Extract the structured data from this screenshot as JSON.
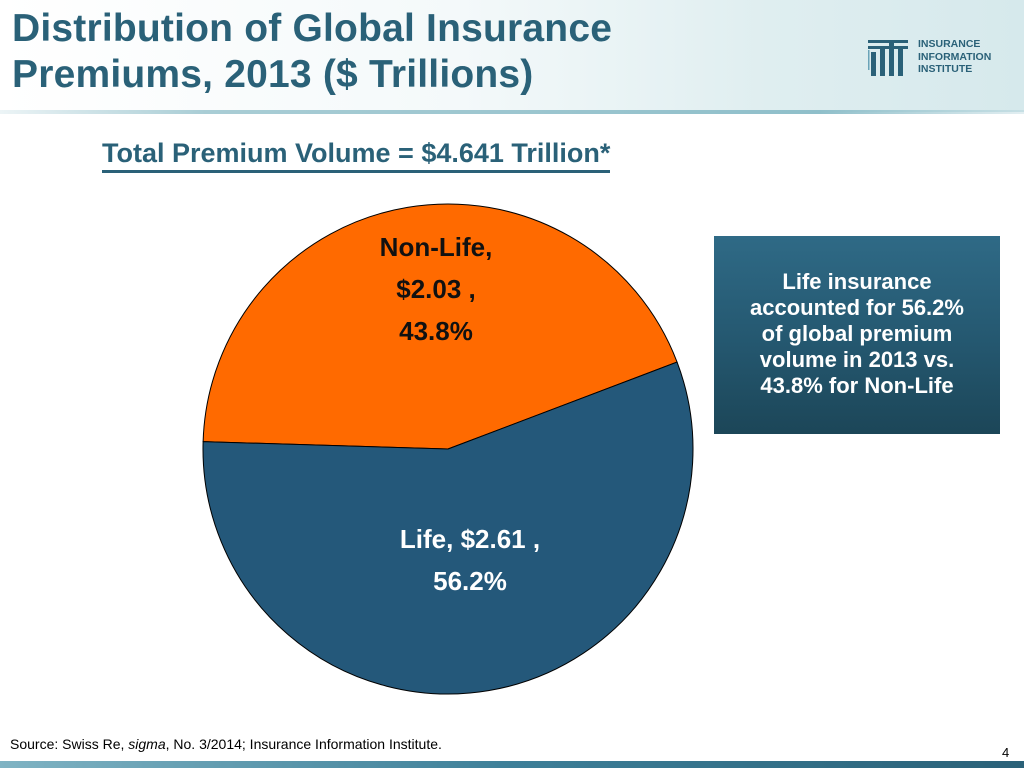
{
  "slide": {
    "title_lines": [
      "Distribution of Global Insurance",
      "Premiums, 2013  ($ Trillions)"
    ],
    "subtitle": "Total Premium Volume = $4.641 Trillion*",
    "logo_lines": [
      "INSURANCE",
      "INFORMATION",
      "INSTITUTE"
    ],
    "callout_lines": [
      "Life insurance",
      "accounted for 56.2%",
      "of global premium",
      "volume in 2013 vs.",
      "43.8% for  Non-Life"
    ],
    "source_prefix": "Source: Swiss Re, ",
    "source_italic": "sigma",
    "source_suffix": ", No. 3/2014; Insurance Information Institute.",
    "page_number": "4"
  },
  "colors": {
    "title": "#2a6178",
    "non_life": "#ff6a00",
    "life": "#24587a",
    "callout_bg": "#24576f"
  },
  "chart_data": {
    "type": "pie",
    "title": "Total Premium Volume = $4.641 Trillion*",
    "total": 4.641,
    "slices": [
      {
        "name": "Non-Life",
        "value": 2.03,
        "percent": 43.8,
        "label_lines": [
          "Non-Life,",
          "$2.03 ,",
          "43.8%"
        ],
        "color": "#ff6a00"
      },
      {
        "name": "Life",
        "value": 2.61,
        "percent": 56.2,
        "label_lines": [
          "Life, $2.61 ,",
          "56.2%"
        ],
        "color": "#24587a"
      }
    ]
  }
}
